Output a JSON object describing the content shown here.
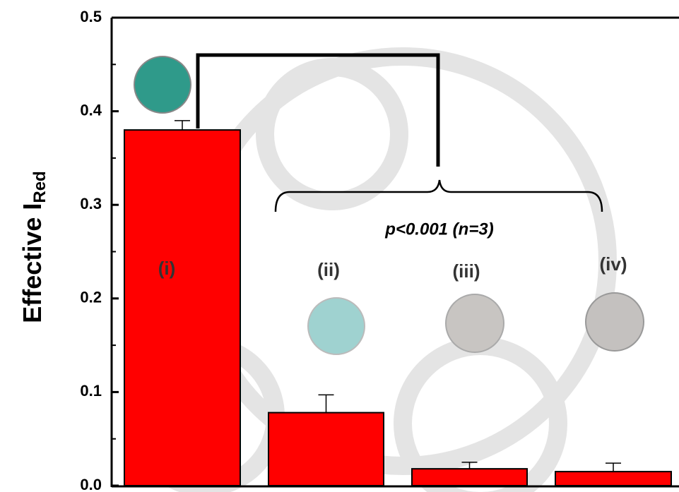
{
  "chart_data": {
    "type": "bar",
    "y_label": {
      "text": "Effective I",
      "subscript": "Red"
    },
    "categories": [
      "(i)",
      "(ii)",
      "(iii)",
      "(iv)"
    ],
    "values": [
      0.38,
      0.078,
      0.018,
      0.015
    ],
    "errors": [
      0.01,
      0.019,
      0.007,
      0.009
    ],
    "color": "#ff0000",
    "annotation": "p<0.001 (n=3)",
    "ylim": [
      0,
      0.5
    ],
    "yticks": [
      {
        "value": 0,
        "label": "0.0"
      },
      0.1,
      0.2,
      0.3,
      0.4,
      0.5
    ],
    "minor_yticks": [
      0.05,
      0.15,
      0.25,
      0.35,
      0.45
    ]
  }
}
